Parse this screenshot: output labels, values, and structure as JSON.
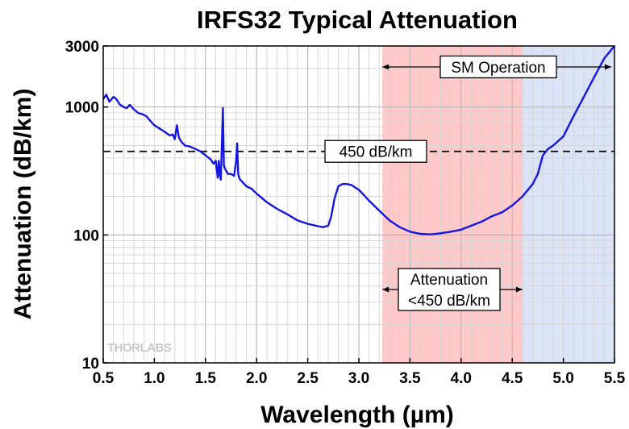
{
  "chart_data": {
    "type": "line",
    "title": "IRFS32 Typical Attenuation",
    "xlabel": "Wavelength (µm)",
    "ylabel": "Attenuation (dB/km)",
    "xlim": [
      0.5,
      5.5
    ],
    "ylim": [
      10,
      3000
    ],
    "yscale": "log",
    "grid": true,
    "x_ticks": [
      "0.5",
      "1.0",
      "1.5",
      "2.0",
      "2.5",
      "3.0",
      "3.5",
      "4.0",
      "4.5",
      "5.0",
      "5.5"
    ],
    "x_tick_values": [
      0.5,
      1.0,
      1.5,
      2.0,
      2.5,
      3.0,
      3.5,
      4.0,
      4.5,
      5.0,
      5.5
    ],
    "y_ticks": [
      "10",
      "100",
      "1000",
      "3000"
    ],
    "y_tick_values": [
      10,
      100,
      1000,
      3000
    ],
    "series": [
      {
        "color": "#1515e0",
        "x": [
          0.5,
          0.53,
          0.56,
          0.6,
          0.63,
          0.66,
          0.7,
          0.73,
          0.76,
          0.8,
          0.84,
          0.88,
          0.92,
          0.96,
          1.0,
          1.05,
          1.1,
          1.15,
          1.18,
          1.2,
          1.22,
          1.24,
          1.26,
          1.3,
          1.35,
          1.4,
          1.45,
          1.5,
          1.55,
          1.58,
          1.6,
          1.62,
          1.63,
          1.64,
          1.65,
          1.66,
          1.67,
          1.68,
          1.69,
          1.7,
          1.72,
          1.75,
          1.78,
          1.8,
          1.81,
          1.82,
          1.83,
          1.84,
          1.86,
          1.9,
          1.95,
          2.0,
          2.05,
          2.1,
          2.2,
          2.3,
          2.4,
          2.5,
          2.6,
          2.65,
          2.7,
          2.73,
          2.76,
          2.8,
          2.84,
          2.88,
          2.93,
          3.0,
          3.05,
          3.1,
          3.2,
          3.3,
          3.4,
          3.5,
          3.6,
          3.7,
          3.8,
          3.9,
          4.0,
          4.1,
          4.2,
          4.3,
          4.4,
          4.5,
          4.6,
          4.7,
          4.75,
          4.8,
          4.85,
          4.9,
          5.0,
          5.1,
          5.2,
          5.3,
          5.4,
          5.5
        ],
        "y": [
          1150,
          1250,
          1100,
          1200,
          1150,
          1050,
          1000,
          980,
          1040,
          960,
          900,
          880,
          850,
          780,
          720,
          680,
          640,
          600,
          610,
          560,
          720,
          580,
          540,
          500,
          490,
          470,
          450,
          420,
          390,
          360,
          380,
          280,
          380,
          300,
          270,
          500,
          980,
          350,
          330,
          320,
          300,
          300,
          290,
          380,
          520,
          300,
          280,
          270,
          260,
          240,
          230,
          210,
          195,
          180,
          160,
          145,
          130,
          122,
          117,
          115,
          118,
          140,
          190,
          240,
          250,
          250,
          245,
          225,
          205,
          185,
          155,
          130,
          115,
          106,
          102,
          101,
          103,
          106,
          110,
          118,
          127,
          140,
          150,
          170,
          200,
          250,
          300,
          420,
          470,
          500,
          590,
          850,
          1200,
          1700,
          2400,
          3000
        ]
      }
    ],
    "annotations": {
      "threshold_line_value": 450,
      "threshold_label": "450 dB/km",
      "attenuation_region": {
        "x_start": 3.23,
        "x_end": 4.6,
        "color": "#ffc9c9",
        "label_line1": "Attenuation",
        "label_line2": "<450 dB/km"
      },
      "sm_region": {
        "x_start": 4.6,
        "x_end": 5.5,
        "color": "#dbe3f7",
        "label": "SM Operation"
      }
    },
    "watermark": "THORLABS"
  }
}
